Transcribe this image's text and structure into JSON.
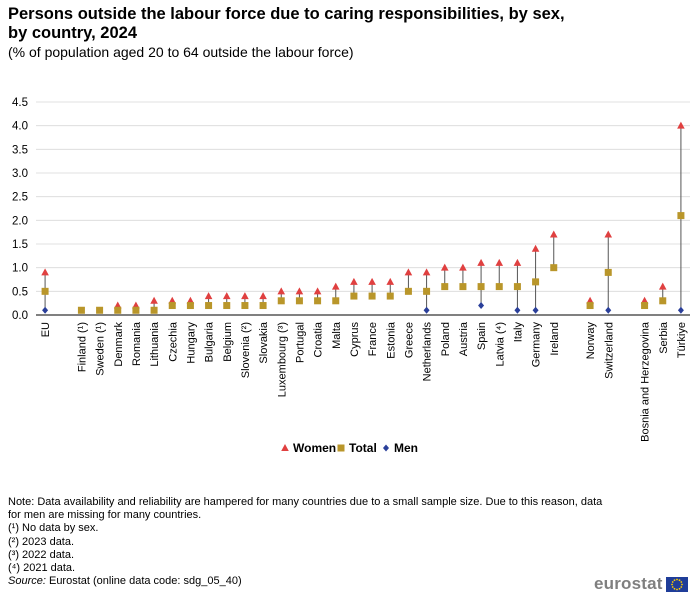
{
  "chart_data": {
    "type": "scatter",
    "title": "Persons outside the labour force due to caring responsibilities, by sex, by country, 2024",
    "subtitle": "(% of population aged 20 to 64 outside the labour force)",
    "ylim": [
      0,
      4.5
    ],
    "yticks": [
      "0.0",
      "0.5",
      "1.0",
      "1.5",
      "2.0",
      "2.5",
      "3.0",
      "3.5",
      "4.0",
      "4.5"
    ],
    "ytick_values": [
      0,
      0.5,
      1.0,
      1.5,
      2.0,
      2.5,
      3.0,
      3.5,
      4.0,
      4.5
    ],
    "grid": true,
    "legend_position": "bottom-center",
    "categories": [
      "EU",
      "",
      "Finland (¹)",
      "Sweden (¹)",
      "Denmark",
      "Romania",
      "Lithuania",
      "Czechia",
      "Hungary",
      "Bulgaria",
      "Belgium",
      "Slovenia (²)",
      "Slovakia",
      "Luxembourg (³)",
      "Portugal",
      "Croatia",
      "Malta",
      "Cyprus",
      "France",
      "Estonia",
      "Greece",
      "Netherlands",
      "Poland",
      "Austria",
      "Spain",
      "Latvia (⁴)",
      "Italy",
      "Germany",
      "Ireland",
      "",
      "Norway",
      "Switzerland",
      "",
      "Bosnia and Herzegovina",
      "Serbia",
      "Türkiye"
    ],
    "series": [
      {
        "name": "Women",
        "marker": "triangle",
        "color": "#e04040",
        "values": [
          0.9,
          null,
          null,
          null,
          0.2,
          0.2,
          0.3,
          0.3,
          0.3,
          0.4,
          0.4,
          0.4,
          0.4,
          0.5,
          0.5,
          0.5,
          0.6,
          0.7,
          0.7,
          0.7,
          0.9,
          0.9,
          1.0,
          1.0,
          1.1,
          1.1,
          1.1,
          1.4,
          1.7,
          null,
          0.3,
          1.7,
          null,
          0.3,
          0.6,
          4.0
        ]
      },
      {
        "name": "Total",
        "marker": "square",
        "color": "#b9962a",
        "values": [
          0.5,
          null,
          0.1,
          0.1,
          0.1,
          0.1,
          0.1,
          0.2,
          0.2,
          0.2,
          0.2,
          0.2,
          0.2,
          0.3,
          0.3,
          0.3,
          0.3,
          0.4,
          0.4,
          0.4,
          0.5,
          0.5,
          0.6,
          0.6,
          0.6,
          0.6,
          0.6,
          0.7,
          1.0,
          null,
          0.2,
          0.9,
          null,
          0.2,
          0.3,
          2.1
        ]
      },
      {
        "name": "Men",
        "marker": "diamond",
        "color": "#2a3f9a",
        "values": [
          0.1,
          null,
          null,
          null,
          null,
          null,
          null,
          null,
          null,
          null,
          null,
          null,
          null,
          null,
          null,
          null,
          null,
          null,
          null,
          null,
          null,
          0.1,
          null,
          null,
          0.2,
          null,
          0.1,
          0.1,
          null,
          null,
          null,
          0.1,
          null,
          null,
          null,
          0.1
        ]
      }
    ]
  },
  "notes": {
    "note": "Note: Data availability and reliability are hampered for many countries due to a small sample size. Due to this reason, data for men are missing for many countries.",
    "f1": "(¹) No data by sex.",
    "f2": "(²) 2023 data.",
    "f3": "(³) 2022 data.",
    "f4": "(⁴) 2021 data.",
    "source_label": "Source:",
    "source_text": " Eurostat (online data code: sdg_05_40)"
  },
  "logo": {
    "text": "eurostat"
  }
}
